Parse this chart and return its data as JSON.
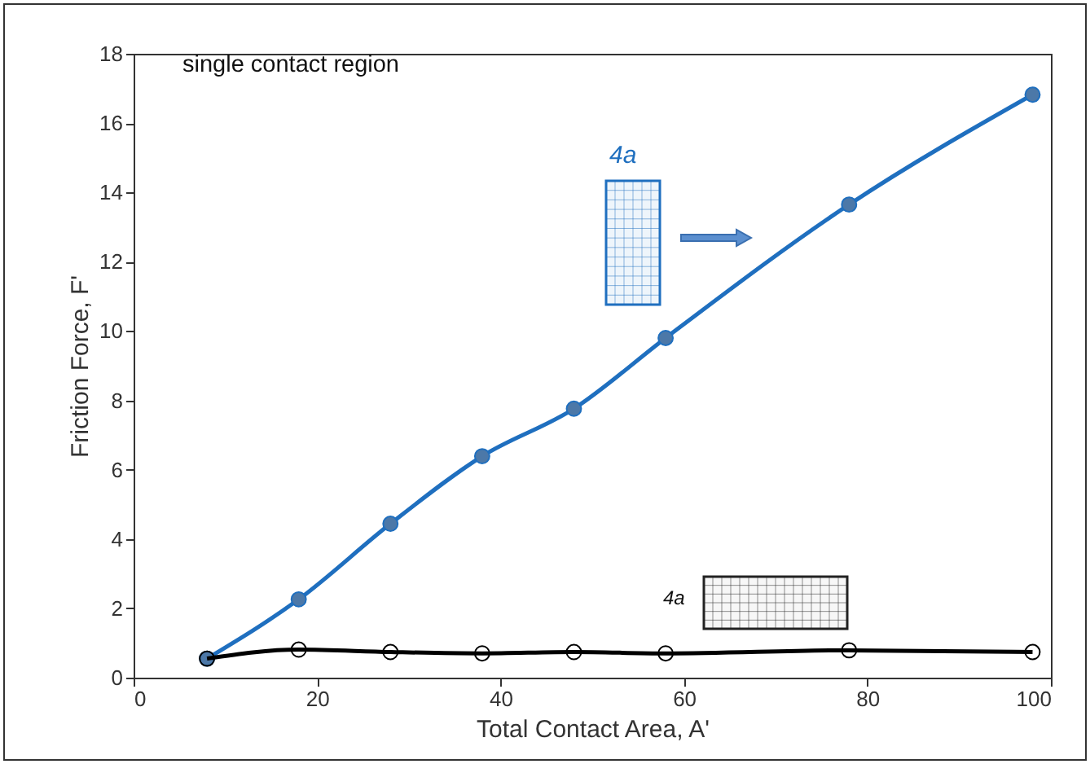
{
  "chart_data": {
    "type": "line",
    "xlabel": "Total Contact Area, A'",
    "ylabel": "Friction Force, F'",
    "annotations": [
      "single contact region",
      "4a",
      "4a"
    ],
    "x": [
      8,
      18,
      28,
      38,
      48,
      58,
      78,
      98
    ],
    "series": [
      {
        "color": "#1f6fbf",
        "values": [
          0.55,
          2.26,
          4.44,
          6.39,
          7.76,
          9.8,
          13.65,
          16.82
        ]
      },
      {
        "color": "#000000",
        "values": [
          0.55,
          0.81,
          0.74,
          0.7,
          0.74,
          0.7,
          0.79,
          0.74
        ]
      }
    ],
    "xlim": [
      0,
      100
    ],
    "xticks": [
      0,
      20,
      40,
      60,
      80,
      100
    ],
    "ylim": [
      0,
      18
    ],
    "yticks": [
      0,
      2,
      4,
      6,
      8,
      10,
      12,
      14,
      16,
      18
    ],
    "marker": "circle",
    "line_style": "solid"
  }
}
